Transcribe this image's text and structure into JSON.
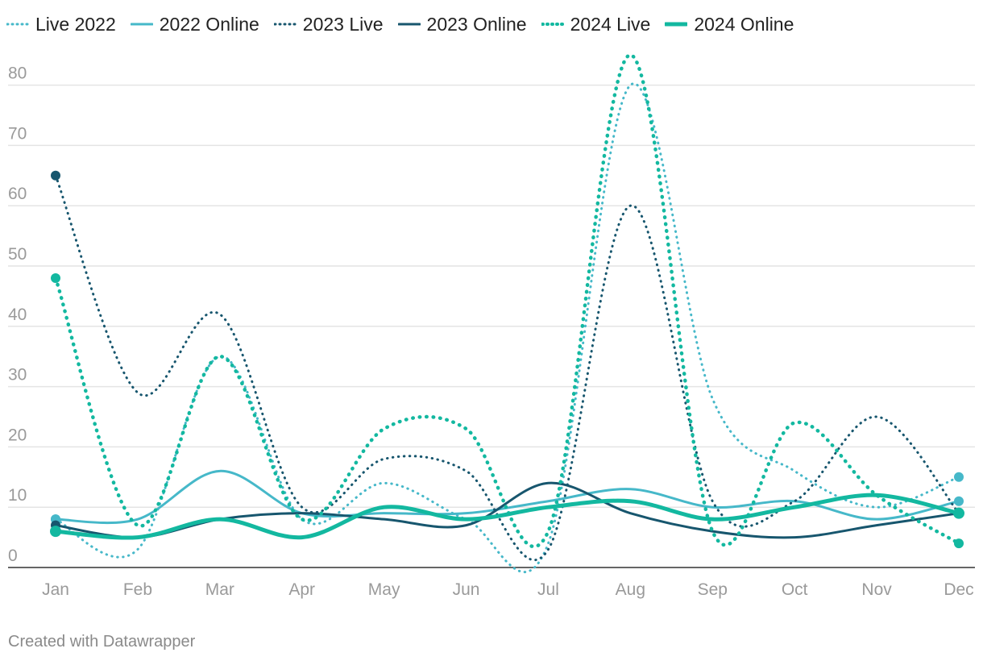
{
  "chart_data": {
    "type": "line",
    "title": "",
    "xlabel": "",
    "ylabel": "",
    "categories": [
      "Jan",
      "Feb",
      "Mar",
      "Apr",
      "May",
      "Jun",
      "Jul",
      "Aug",
      "Sep",
      "Oct",
      "Nov",
      "Dec"
    ],
    "ylim": [
      0,
      85
    ],
    "yticks": [
      0,
      10,
      20,
      30,
      40,
      50,
      60,
      70,
      80
    ],
    "grid": true,
    "legend_position": "top-left",
    "series": [
      {
        "name": "Live 2022",
        "style": "dotted",
        "color": "#46b8c9",
        "values": [
          8,
          3,
          35,
          8,
          14,
          8,
          4,
          80,
          28,
          16,
          10,
          15
        ]
      },
      {
        "name": "2022 Online",
        "style": "solid",
        "color": "#46b8c9",
        "values": [
          8,
          8,
          16,
          9,
          9,
          9,
          11,
          13,
          10,
          11,
          8,
          11
        ]
      },
      {
        "name": "2023 Live",
        "style": "dotted",
        "color": "#17566e",
        "values": [
          65,
          29,
          42,
          10,
          18,
          16,
          3,
          60,
          11,
          11,
          25,
          9
        ]
      },
      {
        "name": "2023 Online",
        "style": "solid",
        "color": "#17566e",
        "values": [
          7,
          5,
          8,
          9,
          8,
          7,
          14,
          9,
          6,
          5,
          7,
          9
        ]
      },
      {
        "name": "2024 Live",
        "style": "dotted",
        "color": "#13b8a0",
        "values": [
          48,
          7,
          35,
          8,
          23,
          23,
          6,
          85,
          6,
          24,
          12,
          4
        ]
      },
      {
        "name": "2024 Online",
        "style": "solid-thick",
        "color": "#13b8a0",
        "values": [
          6,
          5,
          8,
          5,
          10,
          8,
          10,
          11,
          8,
          10,
          12,
          9
        ]
      }
    ]
  },
  "footer": {
    "credit": "Created with Datawrapper"
  }
}
